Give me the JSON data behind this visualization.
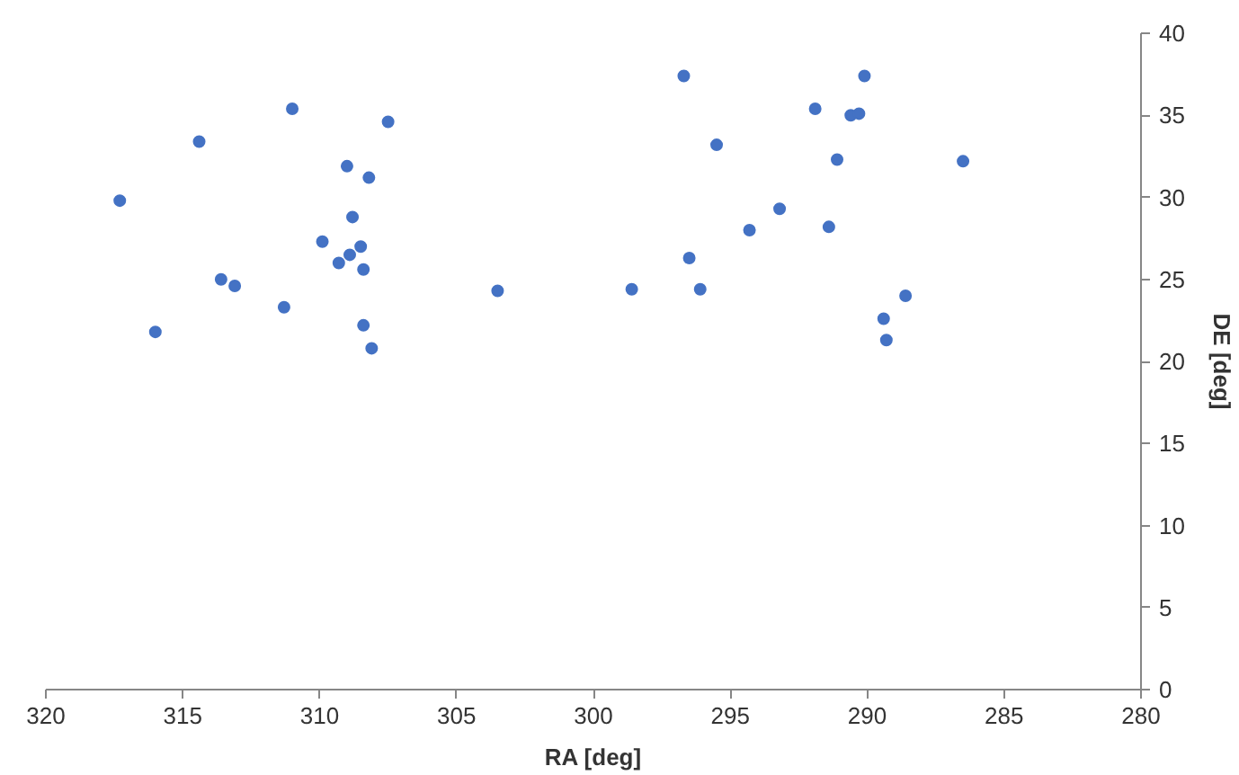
{
  "chart_data": {
    "type": "scatter",
    "xlabel": "RA [deg]",
    "ylabel": "DE [deg]",
    "xlim": [
      320,
      280
    ],
    "xticks": [
      320,
      315,
      310,
      305,
      300,
      295,
      290,
      285,
      280
    ],
    "ylim": [
      0,
      40
    ],
    "yticks": [
      0,
      5,
      10,
      15,
      20,
      25,
      30,
      35,
      40
    ],
    "grid": false,
    "marker": "circle",
    "series": [
      {
        "color": "#4472c4",
        "x": [
          311.0,
          307.5,
          314.4,
          309.0,
          308.2,
          317.3,
          308.8,
          309.9,
          308.5,
          308.9,
          309.3,
          308.4,
          313.6,
          313.1,
          311.3,
          303.5,
          316.0,
          308.4,
          308.1,
          296.7,
          290.1,
          291.9,
          290.6,
          290.3,
          295.5,
          291.1,
          286.5,
          293.2,
          294.3,
          291.4,
          296.5,
          298.6,
          296.1,
          288.6,
          289.4,
          289.3
        ],
        "values": [
          35.4,
          34.6,
          33.4,
          31.9,
          31.2,
          29.8,
          28.8,
          27.3,
          27.0,
          26.5,
          26.0,
          25.6,
          25.0,
          24.6,
          23.3,
          24.3,
          21.8,
          22.2,
          20.8,
          37.4,
          37.4,
          35.4,
          35.0,
          35.1,
          33.2,
          32.3,
          32.2,
          29.3,
          28.0,
          28.2,
          26.3,
          24.4,
          24.4,
          24.0,
          22.6,
          21.3
        ]
      }
    ]
  }
}
